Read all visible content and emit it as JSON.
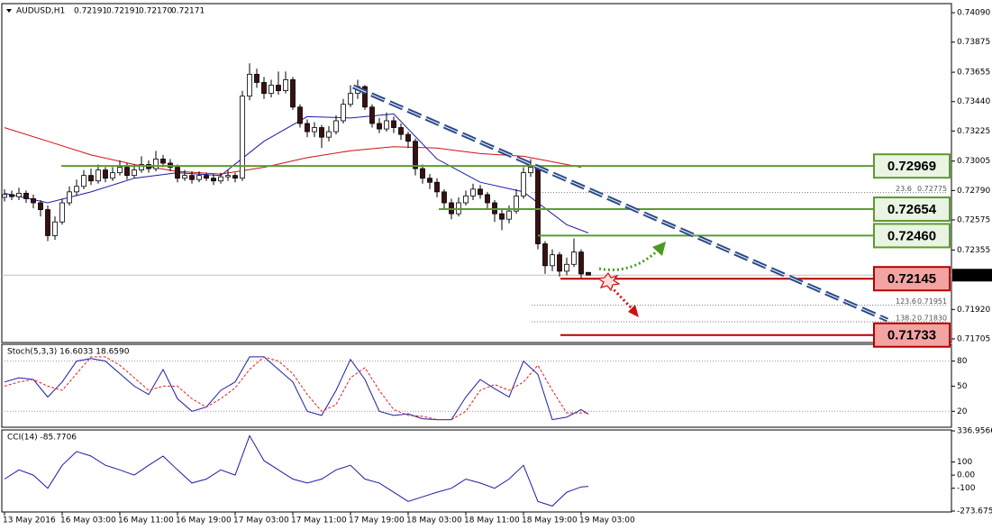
{
  "chart_data": [
    {
      "type": "candlestick",
      "title": "AUDUSD,H1",
      "header_values": [
        "0.72191",
        "0.72191",
        "0.72170",
        "0.72171"
      ],
      "categories": [
        "13 May 2016",
        null,
        null,
        null,
        null,
        null,
        null,
        null,
        "16 May 03:00",
        null,
        null,
        null,
        null,
        null,
        null,
        null,
        "16 May 11:00",
        null,
        null,
        null,
        null,
        null,
        null,
        null,
        "16 May 19:00",
        null,
        null,
        null,
        null,
        null,
        null,
        null,
        "17 May 03:00",
        null,
        null,
        null,
        null,
        null,
        null,
        null,
        "17 May 11:00",
        null,
        null,
        null,
        null,
        null,
        null,
        null,
        "17 May 19:00",
        null,
        null,
        null,
        null,
        null,
        null,
        null,
        "18 May 03:00",
        null,
        null,
        null,
        null,
        null,
        null,
        null,
        "18 May 11:00",
        null,
        null,
        null,
        null,
        null,
        null,
        null,
        "18 May 19:00",
        null,
        null,
        null,
        null,
        null,
        null,
        null,
        "19 May 03:00",
        null
      ],
      "open": [
        0.7274,
        0.7276,
        0.72745,
        0.7277,
        0.7273,
        0.727,
        0.7265,
        0.7246,
        0.7256,
        0.727,
        0.7278,
        0.7282,
        0.729,
        0.7286,
        0.7294,
        0.7288,
        0.7292,
        0.7296,
        0.729,
        0.7294,
        0.7298,
        0.7295,
        0.7302,
        0.7299,
        0.7296,
        0.7288,
        0.729,
        0.7287,
        0.729,
        0.7288,
        0.7286,
        0.7289,
        0.729,
        0.7288,
        0.7348,
        0.7364,
        0.7358,
        0.735,
        0.7356,
        0.7352,
        0.736,
        0.734,
        0.7328,
        0.7322,
        0.7325,
        0.7318,
        0.7322,
        0.733,
        0.7342,
        0.735,
        0.7355,
        0.734,
        0.7328,
        0.7324,
        0.733,
        0.7325,
        0.732,
        0.7315,
        0.7295,
        0.7288,
        0.7285,
        0.7278,
        0.727,
        0.7262,
        0.727,
        0.7275,
        0.728,
        0.7276,
        0.727,
        0.7262,
        0.7258,
        0.7264,
        0.7275,
        0.7292,
        0.7296,
        0.724,
        0.7224,
        0.7232,
        0.722,
        0.7225,
        0.7234,
        0.72191
      ],
      "high": [
        0.728,
        0.7279,
        0.7281,
        0.7279,
        0.7276,
        0.7272,
        0.7268,
        0.726,
        0.7273,
        0.7282,
        0.7287,
        0.7294,
        0.7295,
        0.7298,
        0.7296,
        0.7296,
        0.7301,
        0.7299,
        0.7298,
        0.7304,
        0.7301,
        0.7308,
        0.7305,
        0.7302,
        0.7298,
        0.7294,
        0.7293,
        0.7293,
        0.7292,
        0.7291,
        0.7292,
        0.7294,
        0.7292,
        0.7352,
        0.7372,
        0.7368,
        0.7362,
        0.736,
        0.7366,
        0.7366,
        0.7362,
        0.7342,
        0.7331,
        0.7329,
        0.7327,
        0.7326,
        0.7334,
        0.7346,
        0.7356,
        0.736,
        0.7356,
        0.7342,
        0.7332,
        0.7336,
        0.7333,
        0.7328,
        0.7322,
        0.7317,
        0.7298,
        0.7291,
        0.7288,
        0.728,
        0.7273,
        0.7274,
        0.7279,
        0.7284,
        0.7283,
        0.7278,
        0.7272,
        0.7265,
        0.7268,
        0.728,
        0.7296,
        0.7302,
        0.7298,
        0.7242,
        0.7236,
        0.7234,
        0.723,
        0.7244,
        0.7236,
        0.72191
      ],
      "low": [
        0.7271,
        0.7272,
        0.7272,
        0.727,
        0.7266,
        0.726,
        0.7242,
        0.7243,
        0.7254,
        0.7268,
        0.7275,
        0.728,
        0.7283,
        0.7284,
        0.7285,
        0.7286,
        0.729,
        0.7287,
        0.7288,
        0.7292,
        0.7292,
        0.7293,
        0.7296,
        0.7293,
        0.7285,
        0.7286,
        0.7284,
        0.7285,
        0.7286,
        0.7283,
        0.7284,
        0.7286,
        0.7285,
        0.7286,
        0.7345,
        0.7354,
        0.7346,
        0.7347,
        0.7349,
        0.735,
        0.7338,
        0.7325,
        0.7318,
        0.7318,
        0.731,
        0.7315,
        0.732,
        0.7328,
        0.734,
        0.7346,
        0.7338,
        0.7325,
        0.7321,
        0.7322,
        0.7321,
        0.7316,
        0.731,
        0.729,
        0.7284,
        0.728,
        0.7274,
        0.7266,
        0.7258,
        0.726,
        0.7268,
        0.7272,
        0.7273,
        0.7266,
        0.7256,
        0.725,
        0.7255,
        0.7262,
        0.7273,
        0.7289,
        0.7236,
        0.7218,
        0.722,
        0.7216,
        0.7217,
        0.7223,
        0.7215,
        0.7217
      ],
      "close": [
        0.7276,
        0.72745,
        0.7277,
        0.7273,
        0.727,
        0.7265,
        0.7246,
        0.7256,
        0.727,
        0.7278,
        0.7282,
        0.729,
        0.7286,
        0.7294,
        0.7288,
        0.7292,
        0.7296,
        0.729,
        0.7294,
        0.7298,
        0.7295,
        0.7302,
        0.7299,
        0.7296,
        0.7288,
        0.729,
        0.7287,
        0.729,
        0.7288,
        0.7286,
        0.7289,
        0.729,
        0.7288,
        0.7348,
        0.7364,
        0.7358,
        0.735,
        0.7356,
        0.7352,
        0.736,
        0.734,
        0.7328,
        0.7322,
        0.7325,
        0.7318,
        0.7322,
        0.733,
        0.7342,
        0.735,
        0.7355,
        0.734,
        0.7328,
        0.7324,
        0.733,
        0.7325,
        0.732,
        0.7315,
        0.7295,
        0.7288,
        0.7285,
        0.7278,
        0.727,
        0.7262,
        0.727,
        0.7275,
        0.728,
        0.7276,
        0.727,
        0.7262,
        0.7258,
        0.7264,
        0.7275,
        0.7292,
        0.7296,
        0.724,
        0.7224,
        0.7232,
        0.722,
        0.7225,
        0.7234,
        0.7218,
        0.72171
      ],
      "up_color": "#ffffff",
      "down_color": "#3a1010",
      "lines": [
        {
          "color": "#1c1ca8",
          "x": [
            0,
            6,
            12,
            18,
            24,
            30,
            36,
            42,
            48,
            54,
            60,
            66,
            72,
            78,
            81
          ],
          "values": [
            0.7277,
            0.727,
            0.7278,
            0.7288,
            0.7292,
            0.729,
            0.7315,
            0.7333,
            0.7332,
            0.7335,
            0.7302,
            0.7285,
            0.7278,
            0.7254,
            0.7248
          ]
        },
        {
          "color": "#d01010",
          "x": [
            0,
            6,
            12,
            18,
            24,
            30,
            36,
            42,
            48,
            54,
            60,
            66,
            72,
            78,
            80
          ],
          "values": [
            0.7325,
            0.7315,
            0.7305,
            0.7298,
            0.7293,
            0.7291,
            0.7296,
            0.7303,
            0.7308,
            0.7311,
            0.731,
            0.7306,
            0.7304,
            0.7298,
            0.7296
          ]
        }
      ],
      "ylim": [
        0.71685,
        0.7415
      ],
      "yticks": [
        {
          "value": 0.7409,
          "label": "0.74090"
        },
        0.73875,
        0.73655,
        {
          "value": 0.7344,
          "label": "0.73440"
        },
        0.73225,
        0.73005,
        {
          "value": 0.7279,
          "label": "0.72790"
        },
        0.72575,
        0.72355,
        {
          "value": 0.7192,
          "label": "0.71920"
        },
        0.71705
      ],
      "last_price": 0.72171,
      "levels": [
        {
          "value": 0.72969,
          "color": "#5b9b2f",
          "fill": "#eaf4e2"
        },
        {
          "value": 0.72654,
          "color": "#5b9b2f",
          "fill": "#eaf4e2"
        },
        {
          "value": 0.7246,
          "color": "#5b9b2f",
          "fill": "#eaf4e2",
          "label": "0.72460"
        },
        {
          "value": 0.72145,
          "color": "#b40000",
          "fill": "#f4a3a3"
        },
        {
          "value": 0.71733,
          "color": "#b40000",
          "fill": "#f4a3a3"
        }
      ],
      "fib": {
        "ratios": [
          "23.6",
          "123.6",
          "138.2"
        ],
        "values": [
          0.72775,
          0.71951,
          0.7183
        ],
        "value_labels": [
          "0.72775",
          "0.71951",
          "0.71830"
        ]
      }
    },
    {
      "type": "line",
      "title": "Stoch(5,3,3) 16.6033 18.6590",
      "xlim": [
        0,
        81
      ],
      "ylim": [
        2,
        100
      ],
      "yticks": [
        80,
        50,
        20
      ],
      "levels": [
        80,
        20
      ],
      "x": [
        0,
        2,
        4,
        6,
        8,
        10,
        12,
        14,
        16,
        18,
        20,
        22,
        24,
        26,
        28,
        30,
        32,
        34,
        36,
        38,
        40,
        42,
        44,
        46,
        48,
        50,
        52,
        54,
        56,
        58,
        60,
        62,
        64,
        66,
        68,
        70,
        72,
        74,
        76,
        78,
        80,
        81
      ],
      "series": [
        {
          "color": "#1c1ca8",
          "values": [
            55,
            60,
            58,
            37,
            55,
            80,
            83,
            80,
            65,
            50,
            40,
            70,
            35,
            20,
            25,
            45,
            55,
            85,
            85,
            70,
            55,
            20,
            15,
            45,
            82,
            58,
            20,
            15,
            17,
            11,
            10,
            10,
            37,
            58,
            47,
            37,
            80,
            64,
            10,
            13,
            22,
            16.6033
          ]
        },
        {
          "color": "#e02020",
          "dash": true,
          "values": [
            50,
            55,
            58,
            50,
            45,
            65,
            85,
            85,
            75,
            60,
            45,
            50,
            50,
            35,
            25,
            35,
            48,
            70,
            85,
            80,
            65,
            40,
            20,
            28,
            60,
            72,
            45,
            22,
            15,
            14,
            10,
            10,
            20,
            45,
            52,
            45,
            55,
            75,
            45,
            18,
            18,
            18.659
          ]
        }
      ]
    },
    {
      "type": "line",
      "title": "CCI(14) -85.7706",
      "xlim": [
        0,
        81
      ],
      "ylim": [
        -273.6758,
        336.9566
      ],
      "yticks": [
        336.9566,
        100,
        {
          "value": 0,
          "label": "0.00"
        },
        -100,
        -273.6758
      ],
      "x": [
        0,
        2,
        4,
        6,
        8,
        10,
        12,
        14,
        16,
        18,
        20,
        22,
        24,
        26,
        28,
        30,
        32,
        34,
        36,
        38,
        40,
        42,
        44,
        46,
        48,
        50,
        52,
        54,
        56,
        58,
        60,
        62,
        64,
        66,
        68,
        70,
        72,
        74,
        76,
        78,
        80,
        81
      ],
      "series": [
        {
          "color": "#1c1ca8",
          "values": [
            -30,
            40,
            0,
            -100,
            75,
            180,
            145,
            75,
            40,
            0,
            75,
            145,
            40,
            -60,
            -30,
            40,
            0,
            300,
            110,
            40,
            -30,
            -60,
            -30,
            40,
            75,
            -30,
            -60,
            -130,
            -200,
            -165,
            -130,
            -100,
            -30,
            -60,
            -100,
            -30,
            75,
            -200,
            -235,
            -130,
            -90,
            -85.7706
          ]
        }
      ]
    }
  ]
}
